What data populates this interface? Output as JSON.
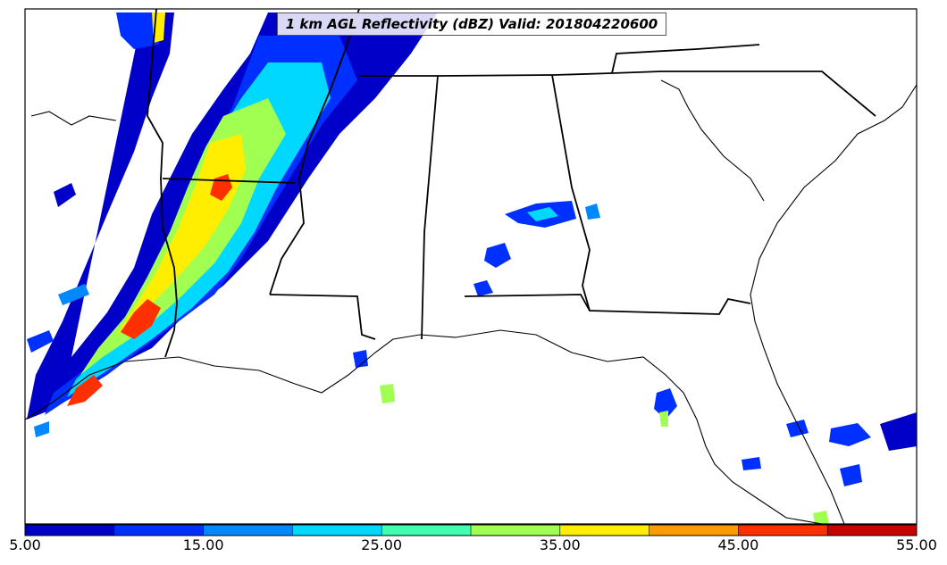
{
  "title": "1 km AGL Reflectivity (dBZ) Valid: 201804220600",
  "colorbar": {
    "ticks": [
      "5.00",
      "15.00",
      "25.00",
      "35.00",
      "45.00",
      "55.00"
    ],
    "min": 5,
    "max": 55,
    "step": 5,
    "colors": [
      "#0000c8",
      "#0030ff",
      "#0088ff",
      "#00d8ff",
      "#40ffb0",
      "#a0ff50",
      "#ffee00",
      "#ff9a00",
      "#ff3000",
      "#c80000"
    ]
  }
}
